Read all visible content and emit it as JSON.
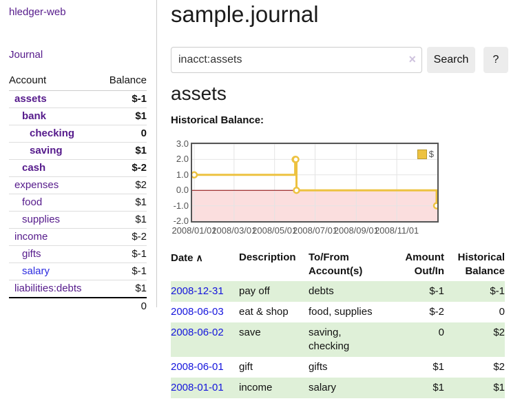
{
  "sidebar": {
    "app_title": "hledger-web",
    "journal_link": "Journal",
    "accounts_table": {
      "headers": {
        "account": "Account",
        "balance": "Balance"
      },
      "rows": [
        {
          "account": "assets",
          "balance": "$-1"
        },
        {
          "account": "bank",
          "balance": "$1"
        },
        {
          "account": "checking",
          "balance": "0"
        },
        {
          "account": "saving",
          "balance": "$1"
        },
        {
          "account": "cash",
          "balance": "$-2"
        },
        {
          "account": "expenses",
          "balance": "$2"
        },
        {
          "account": "food",
          "balance": "$1"
        },
        {
          "account": "supplies",
          "balance": "$1"
        },
        {
          "account": "income",
          "balance": "$-2"
        },
        {
          "account": "gifts",
          "balance": "$-1"
        },
        {
          "account": "salary",
          "balance": "$-1"
        },
        {
          "account": "liabilities:debts",
          "balance": "$1"
        }
      ],
      "total": "0"
    }
  },
  "header": {
    "title": "sample.journal"
  },
  "search": {
    "value": "inacct:assets",
    "clear_icon": "×",
    "search_button": "Search",
    "help_button": "?"
  },
  "account_page": {
    "title": "assets",
    "chart_label": "Historical Balance:"
  },
  "chart_data": {
    "type": "line",
    "style": "step",
    "title": "Historical Balance:",
    "series": [
      {
        "name": "$",
        "points": [
          {
            "date": "2008-01-01",
            "value": 1
          },
          {
            "date": "2008-06-01",
            "value": 2
          },
          {
            "date": "2008-06-02",
            "value": 2
          },
          {
            "date": "2008-06-03",
            "value": 0
          },
          {
            "date": "2008-12-31",
            "value": -1
          }
        ]
      }
    ],
    "x_range": [
      "2008-01-01",
      "2008-12-31"
    ],
    "x_tick_labels": [
      "2008/01/01",
      "2008/03/01",
      "2008/05/01",
      "2008/07/01",
      "2008/09/01",
      "2008/11/01"
    ],
    "y_ticks": [
      3.0,
      2.0,
      1.0,
      0.0,
      -1.0,
      -2.0
    ],
    "ylim": [
      -2,
      3
    ],
    "grid": true,
    "legend_position": "top-right",
    "colors": {
      "series": "#edc240",
      "marker_fill": "#ffffff",
      "negative_region": "#fbdede",
      "zero_line": "#8b0000",
      "grid": "#e4e4e4",
      "border": "#545454",
      "tick_text": "#545454"
    }
  },
  "register": {
    "sort_icon": "∧",
    "headers": {
      "date": "Date",
      "description": "Description",
      "tofrom": "To/From Account(s)",
      "amount": "Amount Out/In",
      "balance": "Historical Balance"
    },
    "rows": [
      {
        "date": "2008-12-31",
        "description": "pay off",
        "tofrom": "debts",
        "amount": "$-1",
        "balance": "$-1"
      },
      {
        "date": "2008-06-03",
        "description": "eat & shop",
        "tofrom": "food, supplies",
        "amount": "$-2",
        "balance": "0"
      },
      {
        "date": "2008-06-02",
        "description": "save",
        "tofrom": "saving, checking",
        "amount": "0",
        "balance": "$2"
      },
      {
        "date": "2008-06-01",
        "description": "gift",
        "tofrom": "gifts",
        "amount": "$1",
        "balance": "$2"
      },
      {
        "date": "2008-01-01",
        "description": "income",
        "tofrom": "salary",
        "amount": "$1",
        "balance": "$1"
      }
    ]
  },
  "colors": {
    "link_purple": "#551a8b",
    "link_blue": "#1414dc",
    "negative_strong": "#8e1212",
    "negative_soft": "#c98888",
    "row_green": "#dff0d8",
    "button_gray": "#ececec"
  }
}
